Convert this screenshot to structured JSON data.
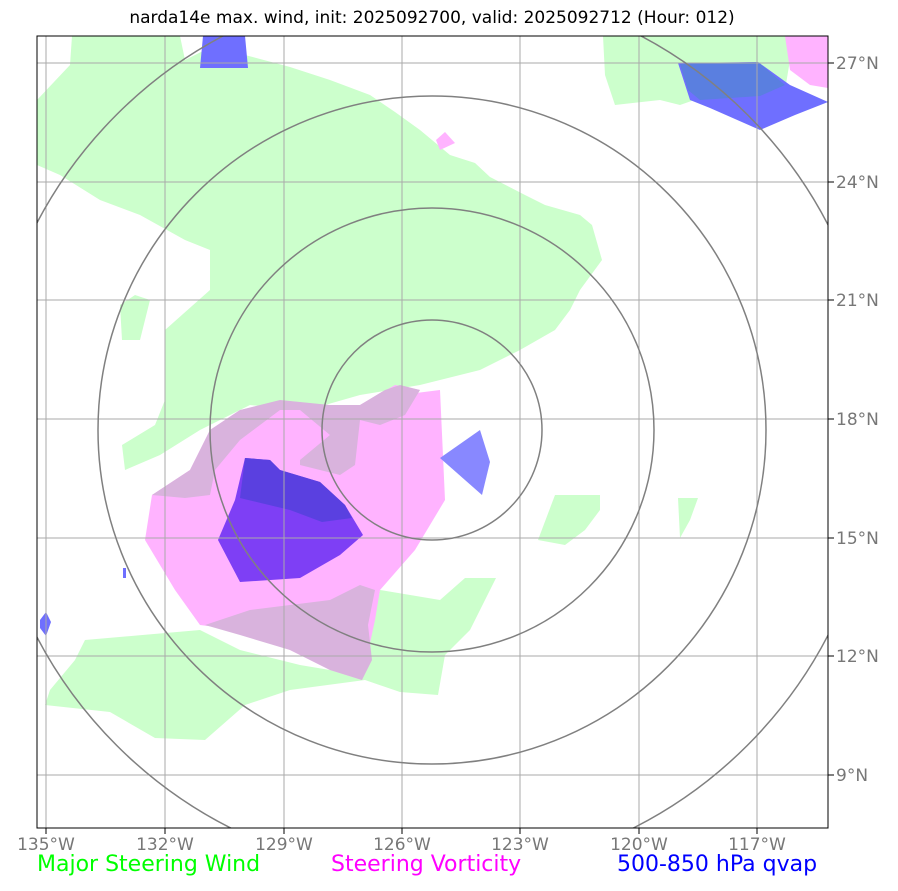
{
  "title": "narda14e max. wind, init: 2025092700, valid: 2025092712 (Hour: 012)",
  "legend": {
    "wind": "Major Steering Wind",
    "vorticity": "Steering Vorticity",
    "qvap": "500-850 hPa qvap"
  },
  "axes": {
    "lon_ticks": [
      "135°W",
      "132°W",
      "129°W",
      "126°W",
      "123°W",
      "120°W",
      "117°W"
    ],
    "lat_ticks": [
      "27°N",
      "24°N",
      "21°N",
      "18°N",
      "15°N",
      "12°N",
      "9°N"
    ],
    "lon_range": [
      -135.2,
      -115.2
    ],
    "lat_range": [
      7.9,
      27.7
    ]
  },
  "colors": {
    "wind": "#ccffcc",
    "vorticity": "#ffb3ff",
    "vorticity_dark": "#d9b3dd",
    "qvap": "#6f6fff",
    "qvap_dark": "#5a40e0",
    "qvap_purple": "#7e3ff5",
    "grid": "#aaaaaa",
    "rings": "#808080"
  }
}
